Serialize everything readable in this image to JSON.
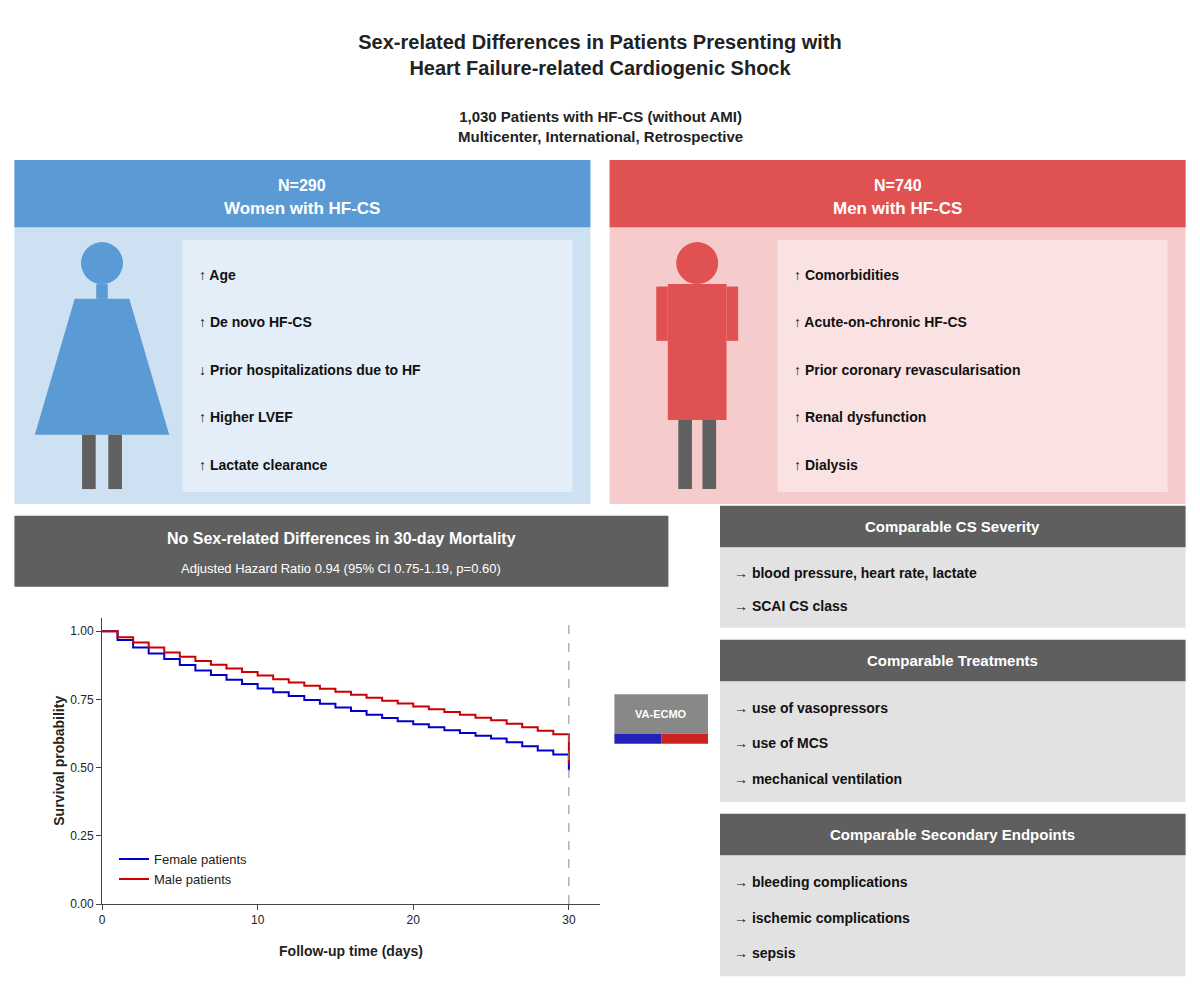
{
  "chart_data": {
    "type": "step",
    "title": "Sex-related Differences in Patients Presenting with\nHeart Failure-related Cardiogenic Shock",
    "subtitle": "1,030 Patients with HF-CS (without AMI)\nMulticenter, International, Retrospective",
    "x_label": "Follow-up time (days)",
    "y_label": "Survival probability",
    "x": [
      0,
      1,
      2,
      3,
      4,
      5,
      6,
      7,
      8,
      9,
      10,
      11,
      12,
      13,
      14,
      15,
      16,
      17,
      18,
      19,
      20,
      21,
      22,
      23,
      24,
      25,
      26,
      27,
      28,
      29,
      30
    ],
    "series": [
      {
        "name": "Female patients",
        "color": "#0000cc",
        "values": [
          1.0,
          0.968,
          0.94,
          0.918,
          0.898,
          0.876,
          0.856,
          0.839,
          0.822,
          0.806,
          0.79,
          0.776,
          0.762,
          0.748,
          0.734,
          0.72,
          0.707,
          0.694,
          0.682,
          0.67,
          0.659,
          0.648,
          0.637,
          0.627,
          0.617,
          0.607,
          0.593,
          0.578,
          0.563,
          0.548,
          0.49
        ]
      },
      {
        "name": "Male patients",
        "color": "#cc0000",
        "values": [
          1.0,
          0.978,
          0.958,
          0.94,
          0.922,
          0.906,
          0.891,
          0.877,
          0.863,
          0.85,
          0.837,
          0.824,
          0.812,
          0.8,
          0.789,
          0.778,
          0.767,
          0.756,
          0.745,
          0.735,
          0.724,
          0.714,
          0.704,
          0.694,
          0.683,
          0.673,
          0.661,
          0.648,
          0.635,
          0.622,
          0.515
        ]
      }
    ],
    "xlim": [
      0,
      32
    ],
    "ylim": [
      0,
      1.05
    ],
    "xticks": [
      0,
      10,
      20,
      30
    ],
    "yticks": [
      {
        "value": 0,
        "label": "0.00"
      },
      0.25,
      {
        "value": 0.5,
        "label": "0.50"
      },
      0.75,
      {
        "value": 1,
        "label": "1.00"
      }
    ],
    "grid": false,
    "legend": "lower left",
    "vlines": [
      {
        "x": 30,
        "color": "#888888",
        "line_style": "dashed"
      }
    ],
    "annotations": [
      {
        "text": [
          "N=290",
          "Women with HF-CS"
        ],
        "color": "#5b9bd5",
        "items": [
          "↑ Age",
          "↑ De novo HF-CS",
          "↓ Prior hospitalizations due to HF",
          "↑ Higher LVEF",
          "↑ Lactate clearance"
        ]
      },
      {
        "text": [
          "N=740",
          "Men with HF-CS"
        ],
        "color": "#e05252",
        "items": [
          "↑ Comorbidities",
          "↑ Acute-on-chronic HF-CS",
          "↑ Prior coronary revascularisation",
          "↑ Renal dysfunction",
          "↑ Dialysis"
        ]
      },
      {
        "text": [
          "No Sex-related Differences in 30-day Mortality",
          "Adjusted Hazard Ratio 0.94 (95% CI 0.75-1.19, p=0.60)"
        ],
        "color": "#5f5f5f"
      },
      {
        "text": [
          "Comparable CS Severity"
        ],
        "color": "#5f5f5f",
        "items": [
          "→ blood pressure, heart rate, lactate",
          "→ SCAI CS class"
        ]
      },
      {
        "text": [
          "Comparable Treatments"
        ],
        "color": "#5f5f5f",
        "items": [
          "→ use of vasopressors",
          "→ use of MCS",
          "→ mechanical ventilation"
        ]
      },
      {
        "text": [
          "Comparable Secondary Endpoints"
        ],
        "color": "#5f5f5f",
        "items": [
          "→ bleeding complications",
          "→ ischemic complications",
          "→ sepsis"
        ]
      },
      {
        "text": [
          "VA-ECMO"
        ],
        "color": "#888888",
        "colors": [
          "#2222bb",
          "#cc2222"
        ]
      }
    ]
  }
}
